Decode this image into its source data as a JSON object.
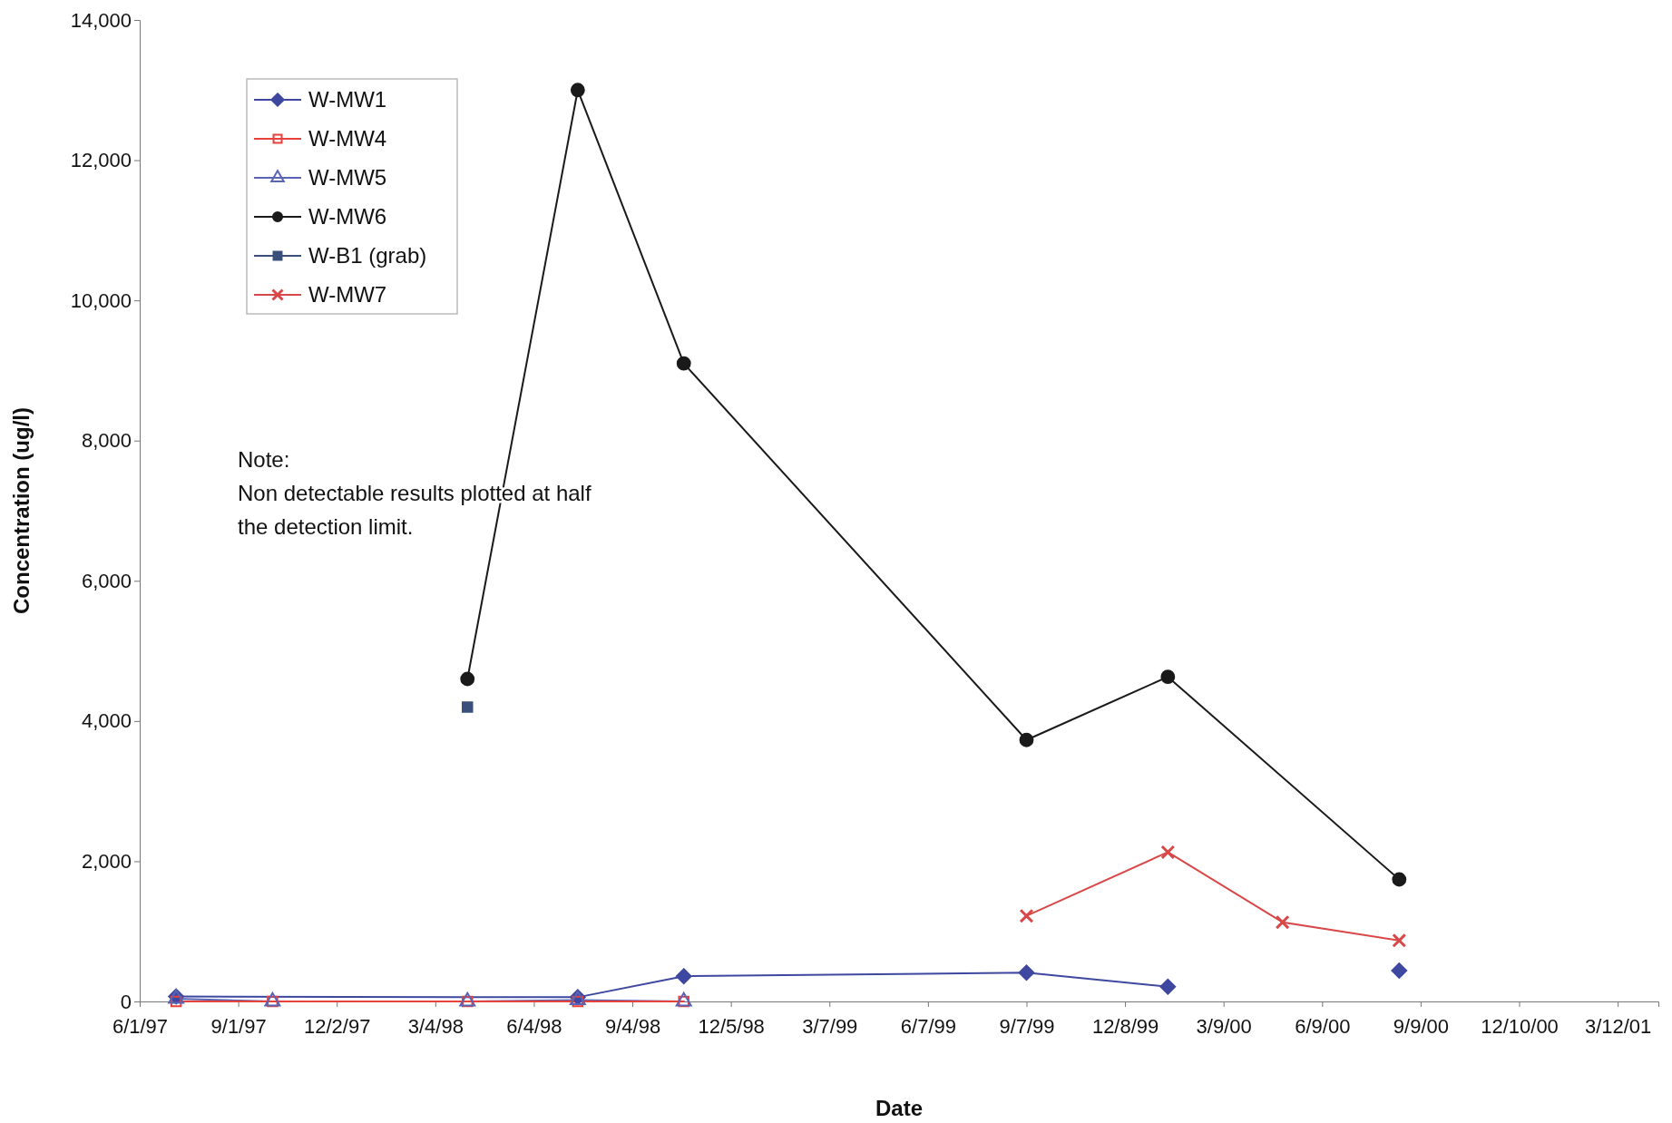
{
  "chart_data": {
    "type": "line",
    "xlabel": "Date",
    "ylabel": "Concentration (ug/l)",
    "xlim": [
      "1997-06-01",
      "2001-04-19"
    ],
    "xticks": [
      {
        "value": "1997-06-01",
        "label": "6/1/97"
      },
      {
        "value": "1997-09-01",
        "label": "9/1/97"
      },
      {
        "value": "1997-12-02",
        "label": "12/2/97"
      },
      {
        "value": "1998-03-04",
        "label": "3/4/98"
      },
      {
        "value": "1998-06-04",
        "label": "6/4/98"
      },
      {
        "value": "1998-09-04",
        "label": "9/4/98"
      },
      {
        "value": "1998-12-05",
        "label": "12/5/98"
      },
      {
        "value": "1999-03-07",
        "label": "3/7/99"
      },
      {
        "value": "1999-06-07",
        "label": "6/7/99"
      },
      {
        "value": "1999-09-07",
        "label": "9/7/99"
      },
      {
        "value": "1999-12-08",
        "label": "12/8/99"
      },
      {
        "value": "2000-03-09",
        "label": "3/9/00"
      },
      {
        "value": "2000-06-09",
        "label": "6/9/00"
      },
      {
        "value": "2000-09-09",
        "label": "9/9/00"
      },
      {
        "value": "2000-12-10",
        "label": "12/10/00"
      },
      {
        "value": "2001-03-12",
        "label": "3/12/01"
      }
    ],
    "ylim": [
      0,
      14000
    ],
    "yticks": [
      {
        "value": 0,
        "label": "0"
      },
      {
        "value": 2000,
        "label": "2,000"
      },
      {
        "value": 4000,
        "label": "4,000"
      },
      {
        "value": 6000,
        "label": "6,000"
      },
      {
        "value": 8000,
        "label": "8,000"
      },
      {
        "value": 10000,
        "label": "10,000"
      },
      {
        "value": 12000,
        "label": "12,000"
      },
      {
        "value": 14000,
        "label": "14,000"
      }
    ],
    "grid": false,
    "legend": "top left",
    "line_style": "solid",
    "annotations": [
      "Note:\nNon detectable results plotted at half\nthe detection limit."
    ],
    "series": [
      {
        "name": "W-MW1",
        "color": "#3f48a0",
        "marker": "diamond",
        "x": [
          "1997-07-05",
          "1998-07-15",
          "1998-10-22",
          "1999-09-07",
          "2000-01-17",
          "2000-05-03",
          "2000-08-20"
        ],
        "values": [
          70,
          60,
          360,
          410,
          210,
          null,
          440
        ]
      },
      {
        "name": "W-MW4",
        "color": "#e8413a",
        "marker": "square",
        "x": [
          "1997-07-05",
          "1997-10-03",
          "1998-04-03",
          "1998-07-15",
          "1998-10-22"
        ],
        "values": [
          0,
          0,
          0,
          0,
          0
        ]
      },
      {
        "name": "W-MW5",
        "color": "#5a64b4",
        "marker": "triangle",
        "x": [
          "1997-07-05",
          "1997-10-03",
          "1998-04-03",
          "1998-07-15",
          "1998-10-22"
        ],
        "values": [
          40,
          0,
          0,
          20,
          0
        ]
      },
      {
        "name": "W-MW6",
        "color": "#1a1a1a",
        "marker": "circle",
        "x": [
          "1998-04-03",
          "1998-07-15",
          "1998-10-22",
          "1999-09-07",
          "2000-01-17",
          "2000-08-20"
        ],
        "values": [
          4600,
          13000,
          9100,
          3730,
          4630,
          1740
        ]
      },
      {
        "name": "W-B1 (grab)",
        "color": "#3a4f7a",
        "marker": "square",
        "x": [
          "1998-04-03"
        ],
        "values": [
          4200
        ]
      },
      {
        "name": "W-MW7",
        "color": "#d94848",
        "marker": "cross",
        "x": [
          "1999-09-07",
          "2000-01-17",
          "2000-05-03",
          "2000-08-20"
        ],
        "values": [
          1220,
          2130,
          1130,
          870
        ]
      }
    ]
  }
}
